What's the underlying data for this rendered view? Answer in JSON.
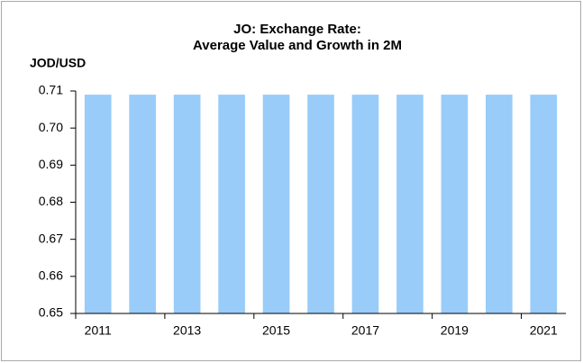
{
  "chart_data": {
    "type": "bar",
    "title": [
      "JO: Exchange Rate:",
      "Average Value and Growth in 2M"
    ],
    "y_label": "JOD/USD",
    "categories": [
      "2011",
      null,
      "2013",
      null,
      "2015",
      null,
      "2017",
      null,
      "2019",
      null,
      "2021"
    ],
    "values": [
      0.709,
      0.709,
      0.709,
      0.709,
      0.709,
      0.709,
      0.709,
      0.709,
      0.709,
      0.709,
      0.709
    ],
    "color": "#99ccf8",
    "ylim": [
      0.65,
      0.71
    ],
    "yticks": [
      0.65,
      0.66,
      0.67,
      0.68,
      0.69,
      {
        "value": 0.7,
        "label": "0.70"
      },
      0.71
    ],
    "grid": false
  }
}
